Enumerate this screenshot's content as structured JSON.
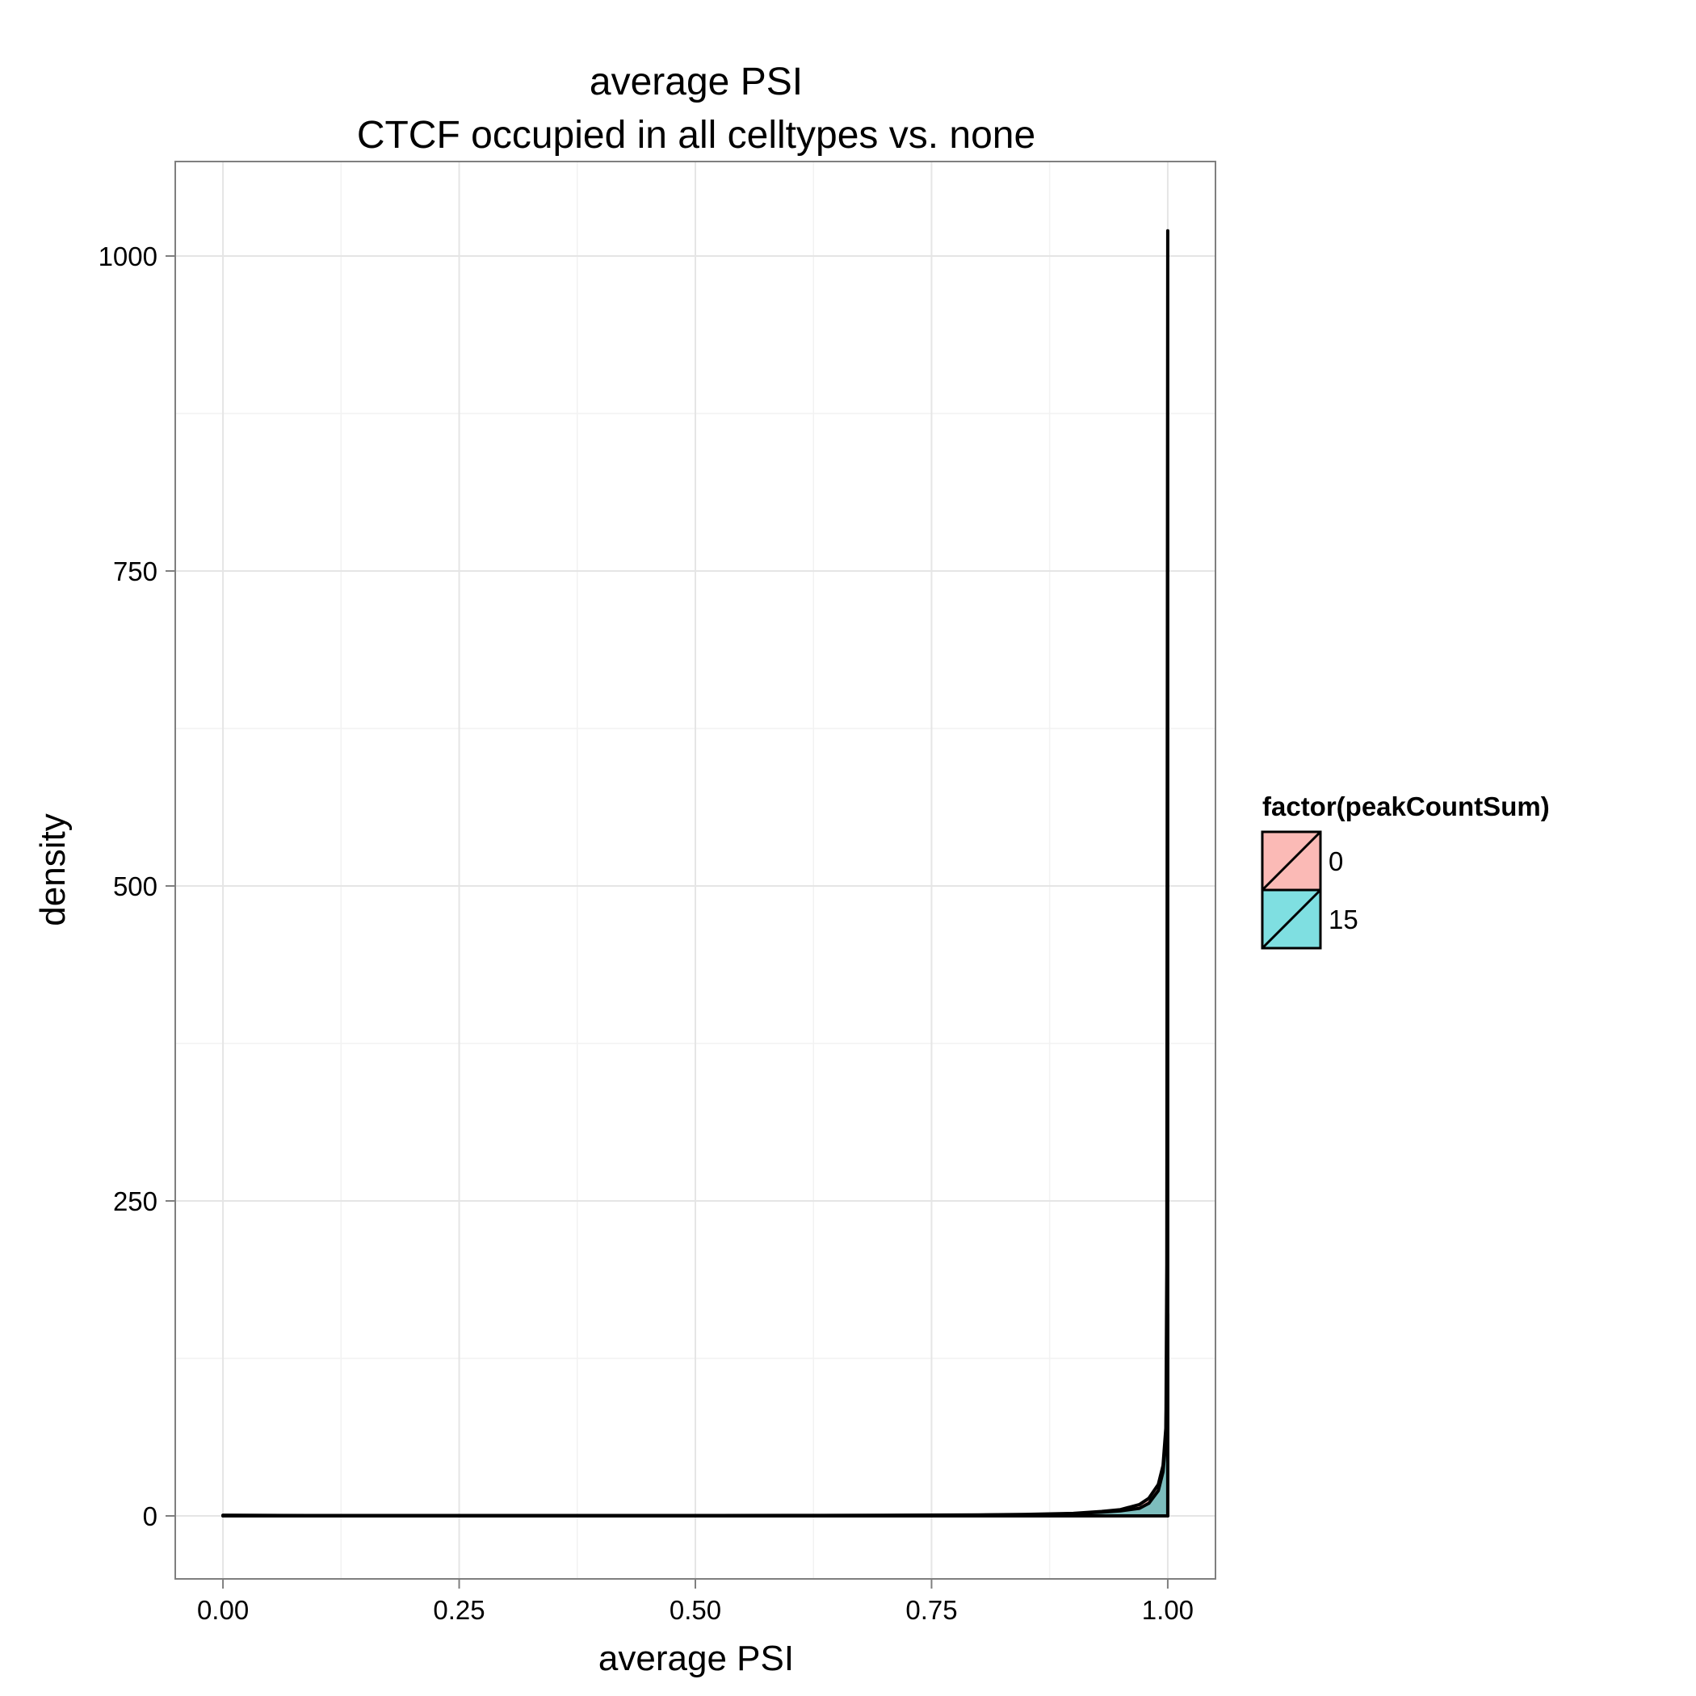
{
  "chart_data": {
    "type": "area",
    "title_lines": [
      "average PSI",
      "CTCF occupied in all celltypes vs. none"
    ],
    "xlabel": "average PSI",
    "ylabel": "density",
    "xlim": [
      -0.1,
      2.2
    ],
    "ylim": [
      -50,
      1075
    ],
    "x_ticks": [
      0.0,
      0.25,
      0.5,
      0.75,
      1.0
    ],
    "x_tick_labels": [
      "0.00",
      "0.25",
      "0.50",
      "0.75",
      "1.00"
    ],
    "y_ticks": [
      0,
      250,
      500,
      750,
      1000
    ],
    "y_tick_labels": [
      "0",
      "250",
      "500",
      "750",
      "1000"
    ],
    "grid": true,
    "legend": {
      "title": "factor(peakCountSum)",
      "placement": "right",
      "entries": [
        {
          "label": "0",
          "color": "#F8766D"
        },
        {
          "label": "15",
          "color": "#00BFC4"
        }
      ]
    },
    "series": [
      {
        "name": "0",
        "color": "#F8766D",
        "x": [
          0.0,
          0.1,
          0.2,
          0.3,
          0.4,
          0.5,
          0.6,
          0.7,
          0.8,
          0.85,
          0.9,
          0.93,
          0.95,
          0.97,
          0.98,
          0.99,
          0.995,
          0.998,
          0.999,
          1.0
        ],
        "y": [
          0.5,
          0.3,
          0.3,
          0.3,
          0.3,
          0.3,
          0.4,
          0.5,
          0.8,
          1.2,
          2,
          3.5,
          5,
          9,
          14,
          25,
          40,
          70,
          110,
          160
        ]
      },
      {
        "name": "15",
        "color": "#00BFC4",
        "x": [
          0.0,
          0.1,
          0.2,
          0.3,
          0.4,
          0.5,
          0.6,
          0.7,
          0.8,
          0.85,
          0.9,
          0.93,
          0.95,
          0.97,
          0.98,
          0.99,
          0.995,
          0.998,
          0.999,
          1.0
        ],
        "y": [
          0.5,
          0.2,
          0.2,
          0.2,
          0.2,
          0.2,
          0.3,
          0.4,
          0.6,
          1.0,
          1.8,
          3,
          4,
          6,
          10,
          20,
          35,
          60,
          200,
          1020
        ]
      }
    ]
  }
}
